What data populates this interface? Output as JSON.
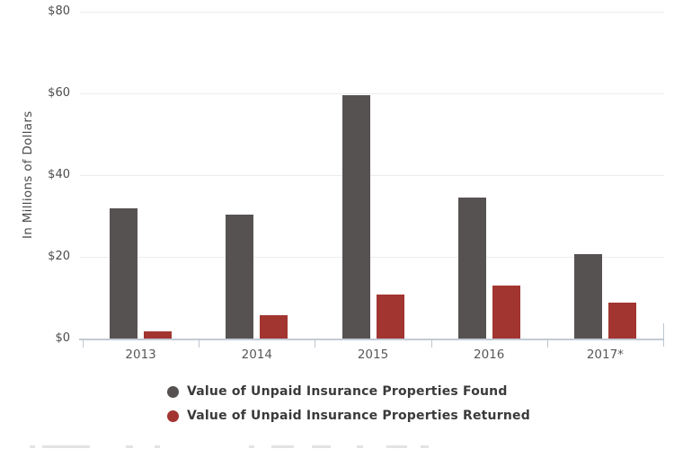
{
  "chart_data": {
    "type": "bar",
    "categories": [
      "2013",
      "2014",
      "2015",
      "2016",
      "2017*"
    ],
    "series": [
      {
        "name": "Value of Unpaid Insurance Properties Found",
        "color": "#575252",
        "values": [
          31.9,
          30.3,
          59.6,
          34.5,
          20.7
        ]
      },
      {
        "name": "Value of Unpaid Insurance Properties Returned",
        "color": "#a23530",
        "values": [
          1.7,
          5.7,
          10.7,
          13.0,
          8.7
        ]
      }
    ],
    "title": "",
    "xlabel": "",
    "ylabel": "In Millions of Dollars",
    "ylim": [
      0,
      80
    ],
    "y_ticks": [
      {
        "value": 0,
        "label": "$0"
      },
      {
        "value": 20,
        "label": "$20"
      },
      {
        "value": 40,
        "label": "$40"
      },
      {
        "value": 60,
        "label": "$60"
      },
      {
        "value": 80,
        "label": "$80"
      }
    ],
    "grid": true,
    "legend_position": "bottom",
    "footnote_clipped": true
  },
  "colors": {
    "background": "#ffffff",
    "gridline": "#ececec",
    "axis": "#c2cbd6",
    "tick_label": "#4c4c4c",
    "category_label": "#585858",
    "legend_text": "#3a3a3a"
  }
}
